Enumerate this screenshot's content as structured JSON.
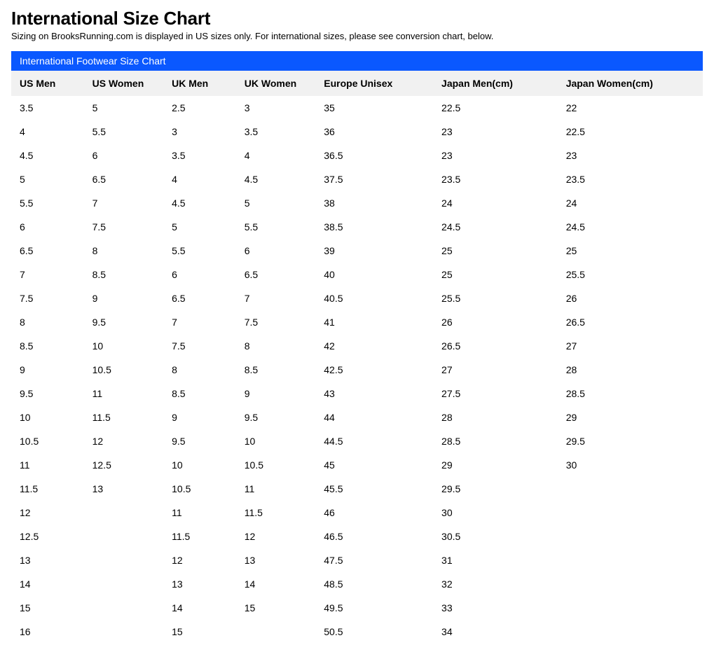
{
  "header": {
    "title": "International Size Chart",
    "subtitle": "Sizing on BrooksRunning.com is displayed in US sizes only. For international sizes, please see conversion chart, below."
  },
  "banner": {
    "label": "International Footwear Size Chart",
    "background_color": "#0a58ff",
    "text_color": "#ffffff"
  },
  "table": {
    "header_background": "#f1f1f1",
    "columns": [
      "US Men",
      "US Women",
      "UK Men",
      "UK Women",
      "Europe Unisex",
      "Japan Men(cm)",
      "Japan Women(cm)"
    ],
    "rows": [
      [
        "3.5",
        "5",
        "2.5",
        "3",
        "35",
        "22.5",
        "22"
      ],
      [
        "4",
        "5.5",
        "3",
        "3.5",
        "36",
        "23",
        "22.5"
      ],
      [
        "4.5",
        "6",
        "3.5",
        "4",
        "36.5",
        "23",
        "23"
      ],
      [
        "5",
        "6.5",
        "4",
        "4.5",
        "37.5",
        "23.5",
        "23.5"
      ],
      [
        "5.5",
        "7",
        "4.5",
        "5",
        "38",
        "24",
        "24"
      ],
      [
        "6",
        "7.5",
        "5",
        "5.5",
        "38.5",
        "24.5",
        "24.5"
      ],
      [
        "6.5",
        "8",
        "5.5",
        "6",
        "39",
        "25",
        "25"
      ],
      [
        "7",
        "8.5",
        "6",
        "6.5",
        "40",
        "25",
        "25.5"
      ],
      [
        "7.5",
        "9",
        "6.5",
        "7",
        "40.5",
        "25.5",
        "26"
      ],
      [
        "8",
        "9.5",
        "7",
        "7.5",
        "41",
        "26",
        "26.5"
      ],
      [
        "8.5",
        "10",
        "7.5",
        "8",
        "42",
        "26.5",
        "27"
      ],
      [
        "9",
        "10.5",
        "8",
        "8.5",
        "42.5",
        "27",
        "28"
      ],
      [
        "9.5",
        "11",
        "8.5",
        "9",
        "43",
        "27.5",
        "28.5"
      ],
      [
        "10",
        "11.5",
        "9",
        "9.5",
        "44",
        "28",
        "29"
      ],
      [
        "10.5",
        "12",
        "9.5",
        "10",
        "44.5",
        "28.5",
        "29.5"
      ],
      [
        "11",
        "12.5",
        "10",
        "10.5",
        "45",
        "29",
        "30"
      ],
      [
        "11.5",
        "13",
        "10.5",
        "11",
        "45.5",
        "29.5",
        ""
      ],
      [
        "12",
        "",
        "11",
        "11.5",
        "46",
        "30",
        ""
      ],
      [
        "12.5",
        "",
        "11.5",
        "12",
        "46.5",
        "30.5",
        ""
      ],
      [
        "13",
        "",
        "12",
        "13",
        "47.5",
        "31",
        ""
      ],
      [
        "14",
        "",
        "13",
        "14",
        "48.5",
        "32",
        ""
      ],
      [
        "15",
        "",
        "14",
        "15",
        "49.5",
        "33",
        ""
      ],
      [
        "16",
        "",
        "15",
        "",
        "50.5",
        "34",
        ""
      ]
    ]
  },
  "styling": {
    "page_background": "#ffffff",
    "text_color": "#000000",
    "title_fontsize": 26,
    "subtitle_fontsize": 13,
    "banner_fontsize": 14,
    "cell_fontsize": 14,
    "font_family": "Helvetica, Arial, sans-serif"
  }
}
